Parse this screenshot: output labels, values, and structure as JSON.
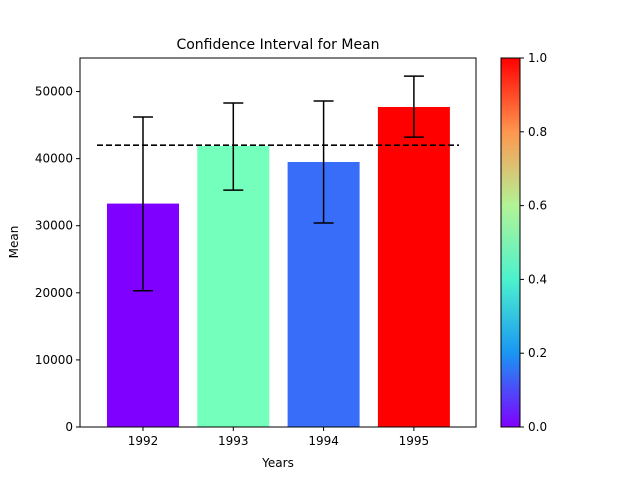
{
  "chart_data": {
    "type": "bar",
    "title": "Confidence Interval for Mean",
    "xlabel": "Years",
    "ylabel": "Mean",
    "categories": [
      "1992",
      "1993",
      "1994",
      "1995"
    ],
    "values": [
      33300,
      41900,
      39500,
      47700
    ],
    "error_low": [
      20300,
      35300,
      30400,
      43200
    ],
    "error_high": [
      46200,
      48300,
      48600,
      52300
    ],
    "bar_colors": [
      "#8000ff",
      "#74ffbd",
      "#386df9",
      "#ff0000"
    ],
    "reference_line": {
      "value": 42000,
      "style": "dashed",
      "color": "#000000"
    },
    "ylim": [
      0,
      55000
    ],
    "yticks": [
      0,
      10000,
      20000,
      30000,
      40000,
      50000
    ],
    "grid": false,
    "legend": null,
    "colorbar": {
      "range": [
        0,
        1
      ],
      "ticks": [
        "0.0",
        "0.2",
        "0.4",
        "0.6",
        "0.8",
        "1.0"
      ],
      "colormap": "rainbow",
      "gradient_stops": [
        "#8000ff",
        "#1996f3",
        "#4cf2ce",
        "#b2f396",
        "#ff964f",
        "#ff0000"
      ]
    }
  }
}
